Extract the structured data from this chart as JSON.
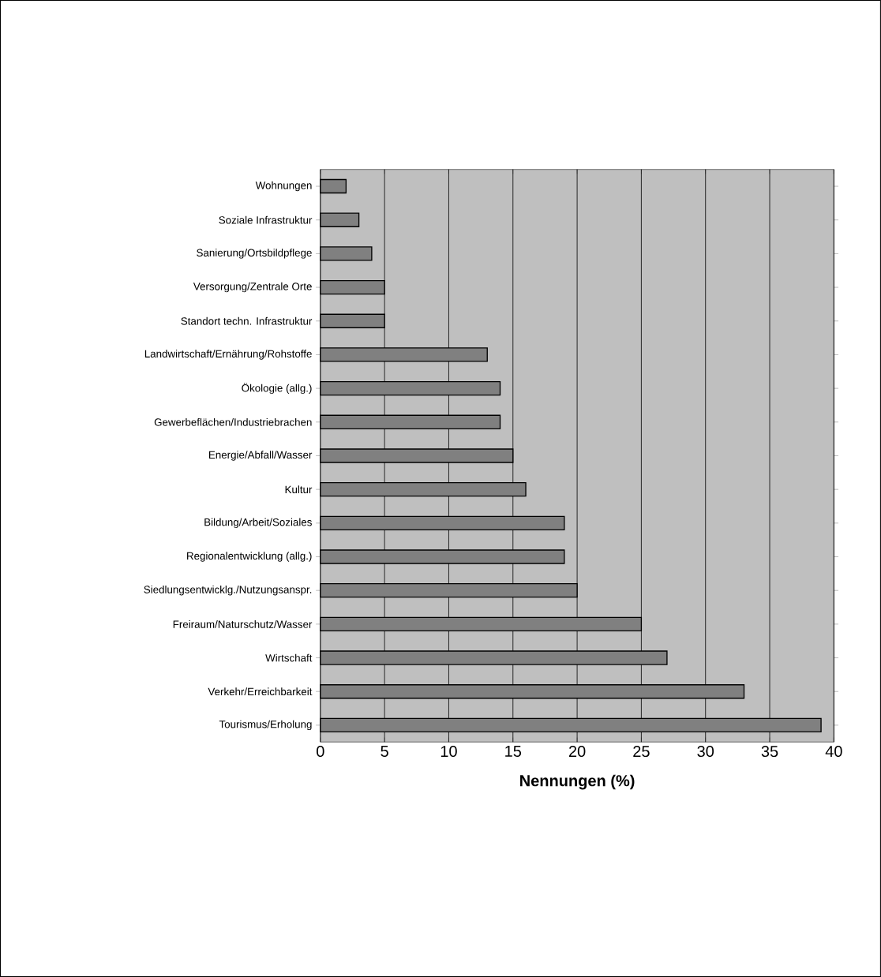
{
  "chart_data": {
    "type": "bar",
    "orientation": "horizontal",
    "xlabel": "**Nennungen (%)**",
    "categories": [
      "Wohnungen",
      "Soziale Infrastruktur",
      "Sanierung/Ortsbildpflege",
      "Versorgung/Zentrale Orte",
      "Standort techn. Infrastruktur",
      "Landwirtschaft/Ernährung/Rohstoffe",
      "Ökologie (allg.)",
      "Gewerbeflächen/Industriebrachen",
      "Energie/Abfall/Wasser",
      "Kultur",
      "Bildung/Arbeit/Soziales",
      "Regionalentwicklung (allg.)",
      "Siedlungsentwicklg./Nutzungsanspr.",
      "Freiraum/Naturschutz/Wasser",
      "Wirtschaft",
      "Verkehr/Erreichbarkeit",
      "Tourismus/Erholung"
    ],
    "values": [
      2,
      3,
      4,
      5,
      5,
      13,
      14,
      14,
      15,
      16,
      19,
      19,
      20,
      25,
      27,
      33,
      39
    ],
    "color": "#808080",
    "xlim": [
      0,
      40
    ],
    "xticks": [
      0,
      5,
      10,
      15,
      20,
      25,
      30,
      35,
      40
    ],
    "grid": "x"
  }
}
